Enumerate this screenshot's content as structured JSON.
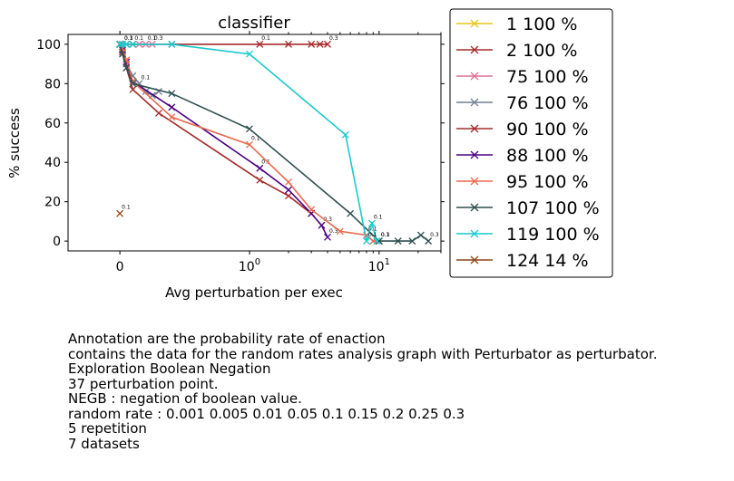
{
  "chart_data": {
    "type": "line",
    "title": "classifier",
    "xlabel": "Avg perturbation per exec",
    "ylabel": "% success",
    "x_scale": "symlog",
    "xlim": [
      -0.4,
      30
    ],
    "ylim": [
      -5,
      105
    ],
    "x_ticks": [
      {
        "value": 0,
        "label": "0"
      },
      {
        "value": 1,
        "label": "10^0"
      },
      {
        "value": 10,
        "label": "10^1"
      }
    ],
    "y_ticks": [
      0,
      20,
      40,
      60,
      80,
      100
    ],
    "grid": false,
    "legend_position": "outside-right",
    "series": [
      {
        "name": "1 100 %",
        "color": "#e6c619",
        "x": [
          0.0,
          0.02,
          0.05,
          0.1
        ],
        "y": [
          100,
          100,
          100,
          100
        ],
        "labels": []
      },
      {
        "name": "2 100 %",
        "color": "#a52a2a",
        "x": [
          0.0,
          0.02,
          0.05,
          0.1,
          0.4,
          1.2,
          2.0,
          3.0,
          3.5,
          4.0
        ],
        "y": [
          100,
          100,
          100,
          100,
          100,
          100,
          100,
          100,
          100,
          100
        ],
        "labels": [
          "",
          "0.3",
          "",
          "0.1",
          "",
          "0.1",
          "",
          "",
          "",
          "0.3"
        ]
      },
      {
        "name": "75 100 %",
        "color": "#db7093",
        "x": [
          0.0,
          0.02,
          0.05,
          0.1,
          0.15,
          0.2,
          0.25
        ],
        "y": [
          100,
          100,
          100,
          100,
          100,
          100,
          100
        ],
        "labels": [
          "",
          "0.1",
          "",
          "",
          "",
          "0.1",
          "0.3"
        ]
      },
      {
        "name": "76 100 %",
        "color": "#708090",
        "x": [
          0.0,
          0.02,
          0.05,
          0.1,
          0.15,
          0.2,
          0.25,
          0.3
        ],
        "y": [
          100,
          97,
          90,
          84,
          80,
          76,
          74,
          76
        ],
        "labels": [
          "",
          "",
          "",
          "",
          "0.1",
          "",
          "",
          ""
        ]
      },
      {
        "name": "90 100 %",
        "color": "#a52a2a",
        "x": [
          0.0,
          0.02,
          0.05,
          0.1,
          0.3,
          1.2,
          2.0,
          3.0
        ],
        "y": [
          100,
          96,
          88,
          77,
          65,
          31,
          23,
          14
        ],
        "labels": []
      },
      {
        "name": "88 100 %",
        "color": "#4b0082",
        "x": [
          0.0,
          0.02,
          0.05,
          0.1,
          0.4,
          1.2,
          2.0,
          3.0,
          3.6,
          4.0
        ],
        "y": [
          100,
          97,
          91,
          81,
          68,
          37,
          26,
          14,
          8,
          2
        ],
        "labels": [
          "",
          "",
          "",
          "",
          "",
          "0.1",
          "",
          "",
          "0.3",
          "0.3"
        ]
      },
      {
        "name": "95 100 %",
        "color": "#e8694d",
        "x": [
          0.0,
          0.02,
          0.05,
          0.1,
          0.4,
          1.0,
          2.0,
          3.0,
          5.0,
          8.0,
          9.0,
          10.0
        ],
        "y": [
          100,
          98,
          92,
          81,
          63,
          49,
          30,
          16,
          5,
          3,
          0,
          0
        ],
        "labels": [
          "",
          "",
          "",
          "",
          "",
          "0.1",
          "",
          "",
          "",
          "0.1",
          "",
          "0.3"
        ]
      },
      {
        "name": "107 100 %",
        "color": "#2f4f4f",
        "x": [
          0.0,
          0.02,
          0.05,
          0.1,
          0.4,
          1.0,
          6.0,
          10.0,
          14.0,
          18.0,
          21.0,
          24.0
        ],
        "y": [
          100,
          95,
          88,
          80,
          75,
          57,
          14,
          0,
          0,
          0,
          3,
          0
        ],
        "labels": [
          "",
          "",
          "",
          "",
          "",
          "",
          "",
          "0.1",
          "",
          "",
          "",
          "0.3"
        ]
      },
      {
        "name": "119 100 %",
        "color": "#1ac9cc",
        "x": [
          0.0,
          0.02,
          0.05,
          0.1,
          0.4,
          1.0,
          5.5,
          8.0,
          8.8,
          9.6
        ],
        "y": [
          100,
          100,
          100,
          100,
          100,
          95,
          54,
          0,
          9,
          0
        ],
        "labels": [
          "",
          "",
          "",
          "",
          "",
          "",
          "",
          "0.1",
          "0.1",
          ""
        ]
      },
      {
        "name": "124 14 %",
        "color": "#8b4513",
        "x": [
          0.0
        ],
        "y": [
          14
        ],
        "labels": [
          "0.1"
        ]
      }
    ]
  },
  "caption": {
    "lines": [
      "Annotation are the probability rate of enaction",
      "contains the data for the random rates analysis graph with Perturbator as perturbator.",
      "Exploration Boolean Negation",
      "37 perturbation point.",
      "NEGB : negation of boolean value.",
      "random rate : 0.001 0.005 0.01 0.05 0.1 0.15 0.2 0.25 0.3",
      "5 repetition",
      "7 datasets"
    ]
  }
}
